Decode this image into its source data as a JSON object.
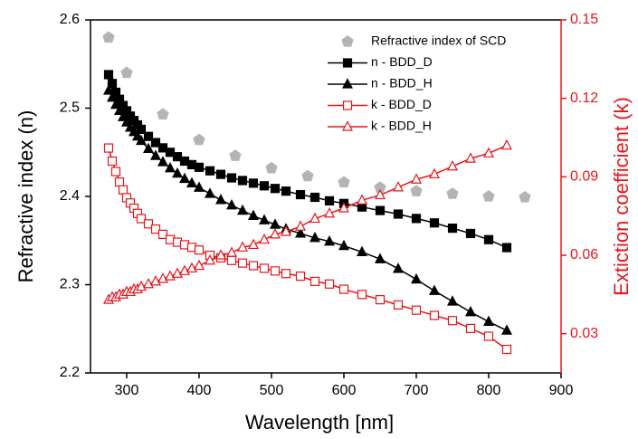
{
  "chart_data": {
    "type": "line",
    "xlabel": "Wavelength [nm]",
    "ylabel": "Refractive index (n)",
    "y2label": "Extiction coefficient (k)",
    "xlim": [
      250,
      900
    ],
    "xticks": [
      300,
      400,
      500,
      600,
      700,
      800,
      900
    ],
    "ylim": [
      2.2,
      2.6
    ],
    "yticks": [
      2.2,
      2.3,
      2.4,
      2.5,
      2.6
    ],
    "y2lim": [
      0.015,
      0.15
    ],
    "y2ticks": [
      0.03,
      0.06,
      0.09,
      0.12,
      0.15
    ],
    "y2color": "#e8141b",
    "legend": "upper right",
    "x": [
      275,
      280,
      285,
      290,
      295,
      300,
      305,
      310,
      315,
      320,
      330,
      340,
      350,
      360,
      370,
      380,
      390,
      400,
      415,
      430,
      445,
      460,
      475,
      490,
      505,
      520,
      540,
      560,
      580,
      600,
      625,
      650,
      675,
      700,
      725,
      750,
      775,
      800,
      825
    ],
    "series": [
      {
        "name": "Refractive index of SCD",
        "color": "#b4b4b4",
        "marker": "pentagon",
        "line": false,
        "x": [
          275,
          300,
          350,
          400,
          450,
          500,
          550,
          600,
          650,
          700,
          750,
          800,
          850
        ],
        "values": [
          2.58,
          2.54,
          2.493,
          2.464,
          2.446,
          2.432,
          2.423,
          2.416,
          2.41,
          2.406,
          2.403,
          2.4,
          2.399
        ]
      },
      {
        "name": "n - BDD_D",
        "color": "#000000",
        "marker": "square",
        "line": true,
        "values": [
          2.538,
          2.528,
          2.518,
          2.51,
          2.503,
          2.497,
          2.491,
          2.486,
          2.481,
          2.476,
          2.468,
          2.461,
          2.455,
          2.45,
          2.445,
          2.44,
          2.436,
          2.433,
          2.429,
          2.425,
          2.421,
          2.418,
          2.415,
          2.412,
          2.409,
          2.406,
          2.402,
          2.399,
          2.395,
          2.392,
          2.388,
          2.384,
          2.38,
          2.375,
          2.37,
          2.364,
          2.358,
          2.351,
          2.342
        ]
      },
      {
        "name": "n - BDD_H",
        "color": "#000000",
        "marker": "triangle",
        "line": true,
        "values": [
          2.52,
          2.512,
          2.504,
          2.497,
          2.49,
          2.484,
          2.478,
          2.473,
          2.468,
          2.463,
          2.454,
          2.446,
          2.439,
          2.432,
          2.426,
          2.42,
          2.415,
          2.41,
          2.403,
          2.396,
          2.39,
          2.384,
          2.378,
          2.373,
          2.368,
          2.363,
          2.358,
          2.353,
          2.349,
          2.344,
          2.337,
          2.329,
          2.318,
          2.306,
          2.293,
          2.281,
          2.269,
          2.258,
          2.248
        ]
      },
      {
        "name": "k - BDD_D",
        "color": "#e8141b",
        "marker": "open-square",
        "line": true,
        "axis": "y2",
        "values": [
          0.101,
          0.096,
          0.092,
          0.088,
          0.085,
          0.082,
          0.08,
          0.078,
          0.076,
          0.074,
          0.072,
          0.07,
          0.068,
          0.066,
          0.065,
          0.064,
          0.063,
          0.062,
          0.06,
          0.059,
          0.058,
          0.057,
          0.056,
          0.055,
          0.054,
          0.053,
          0.052,
          0.05,
          0.049,
          0.047,
          0.045,
          0.043,
          0.041,
          0.039,
          0.037,
          0.035,
          0.032,
          0.029,
          0.024
        ]
      },
      {
        "name": "k - BDD_H",
        "color": "#e8141b",
        "marker": "open-triangle",
        "line": true,
        "axis": "y2",
        "values": [
          0.043,
          0.044,
          0.044,
          0.045,
          0.045,
          0.046,
          0.046,
          0.047,
          0.047,
          0.048,
          0.049,
          0.05,
          0.051,
          0.052,
          0.053,
          0.054,
          0.055,
          0.056,
          0.058,
          0.06,
          0.061,
          0.063,
          0.064,
          0.066,
          0.068,
          0.069,
          0.071,
          0.074,
          0.076,
          0.078,
          0.081,
          0.083,
          0.086,
          0.089,
          0.091,
          0.094,
          0.097,
          0.099,
          0.102
        ]
      }
    ]
  }
}
